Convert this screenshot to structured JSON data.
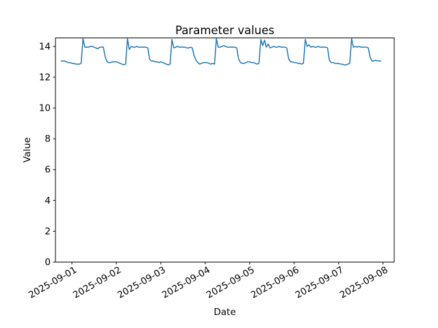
{
  "chart_data": {
    "type": "line",
    "title": "Parameter values",
    "xlabel": "Date",
    "ylabel": "Value",
    "line_color": "#1f77b4",
    "background_color": "#ffffff",
    "legend": null,
    "grid": false,
    "x_start": "2025-08-31 18:00",
    "x_interval_hours": 1,
    "x_start_offset_hours": -6,
    "x_tick_labels": [
      "2025-09-01",
      "2025-09-02",
      "2025-09-03",
      "2025-09-04",
      "2025-09-05",
      "2025-09-06",
      "2025-09-07",
      "2025-09-08"
    ],
    "x_tick_rotation_deg": 30,
    "xlim_days": [
      -0.37,
      7.25
    ],
    "y_ticks": [
      0,
      2,
      4,
      6,
      8,
      10,
      12,
      14
    ],
    "ylim": [
      0,
      14.55
    ],
    "values": [
      13.05,
      13.05,
      13.05,
      13.0,
      12.95,
      12.95,
      12.9,
      12.9,
      12.85,
      12.85,
      12.85,
      12.9,
      14.5,
      13.95,
      13.95,
      13.95,
      14.0,
      14.0,
      13.95,
      13.9,
      13.85,
      13.95,
      13.95,
      13.95,
      13.3,
      13.0,
      12.95,
      12.95,
      13.0,
      13.0,
      13.0,
      12.95,
      12.9,
      12.85,
      12.8,
      12.85,
      14.5,
      13.8,
      14.0,
      13.95,
      13.95,
      14.0,
      13.95,
      13.95,
      13.95,
      13.95,
      13.95,
      13.9,
      13.15,
      13.05,
      13.05,
      13.0,
      13.0,
      12.95,
      13.0,
      12.95,
      12.9,
      12.85,
      12.8,
      12.85,
      14.45,
      13.9,
      13.95,
      14.0,
      13.95,
      13.95,
      13.95,
      13.95,
      13.9,
      13.9,
      13.95,
      13.9,
      13.4,
      13.1,
      12.95,
      12.85,
      12.9,
      12.95,
      12.95,
      12.95,
      12.9,
      12.85,
      12.9,
      12.85,
      14.5,
      13.95,
      13.95,
      14.0,
      14.05,
      14.0,
      13.95,
      13.95,
      13.95,
      13.95,
      13.95,
      13.9,
      13.2,
      12.95,
      12.9,
      12.9,
      12.95,
      13.0,
      13.0,
      12.95,
      12.95,
      12.9,
      12.85,
      12.9,
      14.45,
      14.05,
      14.4,
      13.95,
      14.15,
      13.9,
      13.95,
      14.0,
      13.95,
      13.95,
      14.0,
      13.95,
      13.95,
      13.95,
      13.9,
      13.2,
      13.0,
      13.0,
      12.95,
      12.95,
      12.9,
      12.9,
      12.85,
      12.9,
      14.45,
      14.0,
      14.1,
      13.95,
      14.0,
      13.95,
      13.95,
      14.0,
      13.95,
      13.95,
      13.95,
      13.95,
      13.9,
      13.1,
      12.95,
      12.95,
      12.9,
      12.9,
      12.9,
      12.85,
      12.85,
      12.8,
      12.8,
      12.85,
      12.9,
      14.5,
      13.95,
      14.0,
      13.95,
      14.0,
      13.95,
      13.95,
      13.95,
      13.95,
      13.9,
      13.3,
      13.05,
      13.05,
      13.1,
      13.05,
      13.05,
      13.05
    ]
  }
}
